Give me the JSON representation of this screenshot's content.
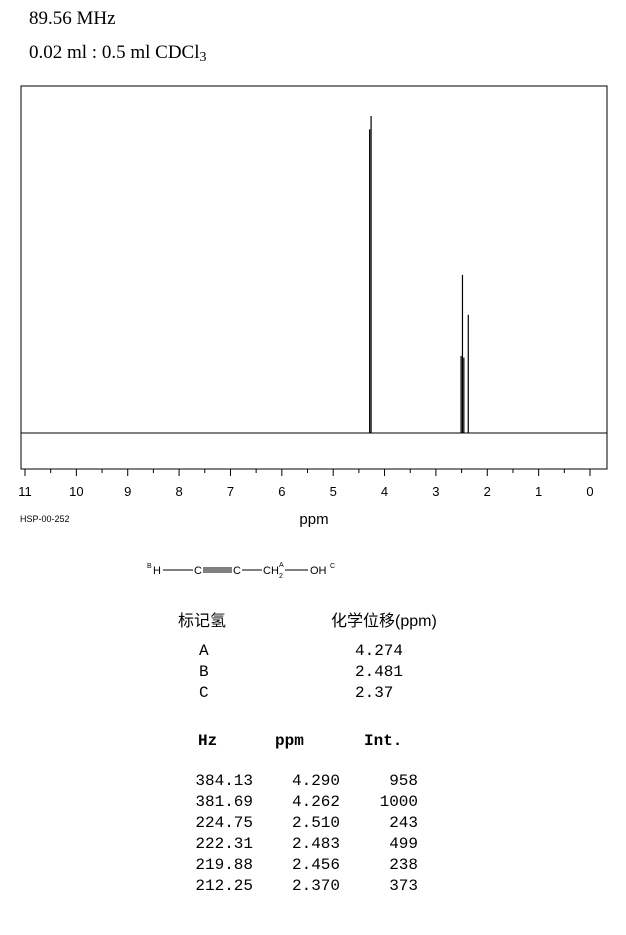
{
  "header": {
    "frequency": "89.56 MHz",
    "solvent_prefix": "0.02 ml : 0.5 ml CDCl",
    "solvent_sub": "3"
  },
  "spectrum_id": "HSP-00-252",
  "chart_data": {
    "type": "line",
    "xlabel": "ppm",
    "xlim": [
      11,
      0
    ],
    "x_reversed": true,
    "x_ticks": [
      "11",
      "10",
      "9",
      "8",
      "7",
      "6",
      "5",
      "4",
      "3",
      "2",
      "1",
      "0"
    ],
    "peaks": [
      {
        "ppm": 4.29,
        "intensity": 958
      },
      {
        "ppm": 4.262,
        "intensity": 1000
      },
      {
        "ppm": 2.51,
        "intensity": 243
      },
      {
        "ppm": 2.483,
        "intensity": 499
      },
      {
        "ppm": 2.456,
        "intensity": 238
      },
      {
        "ppm": 2.37,
        "intensity": 373
      }
    ]
  },
  "structure": {
    "h_b_label": "B",
    "h_b": "H",
    "c1": "C",
    "c2": "C",
    "ch2": "CH",
    "ch2_sub": "2",
    "ch2_label": "A",
    "oh": "OH",
    "oh_label": "C"
  },
  "assignment_table": {
    "col1": "标记氢",
    "col2": "化学位移(ppm)",
    "rows": [
      {
        "label": "A",
        "shift": "4.274"
      },
      {
        "label": "B",
        "shift": "2.481"
      },
      {
        "label": "C",
        "shift": "2.37"
      }
    ]
  },
  "peak_table": {
    "headers": [
      "Hz",
      "ppm",
      "Int."
    ],
    "rows": [
      {
        "hz": "384.13",
        "ppm": "4.290",
        "int": "958"
      },
      {
        "hz": "381.69",
        "ppm": "4.262",
        "int": "1000"
      },
      {
        "hz": "224.75",
        "ppm": "2.510",
        "int": "243"
      },
      {
        "hz": "222.31",
        "ppm": "2.483",
        "int": "499"
      },
      {
        "hz": "219.88",
        "ppm": "2.456",
        "int": "238"
      },
      {
        "hz": "212.25",
        "ppm": "2.370",
        "int": "373"
      }
    ]
  }
}
